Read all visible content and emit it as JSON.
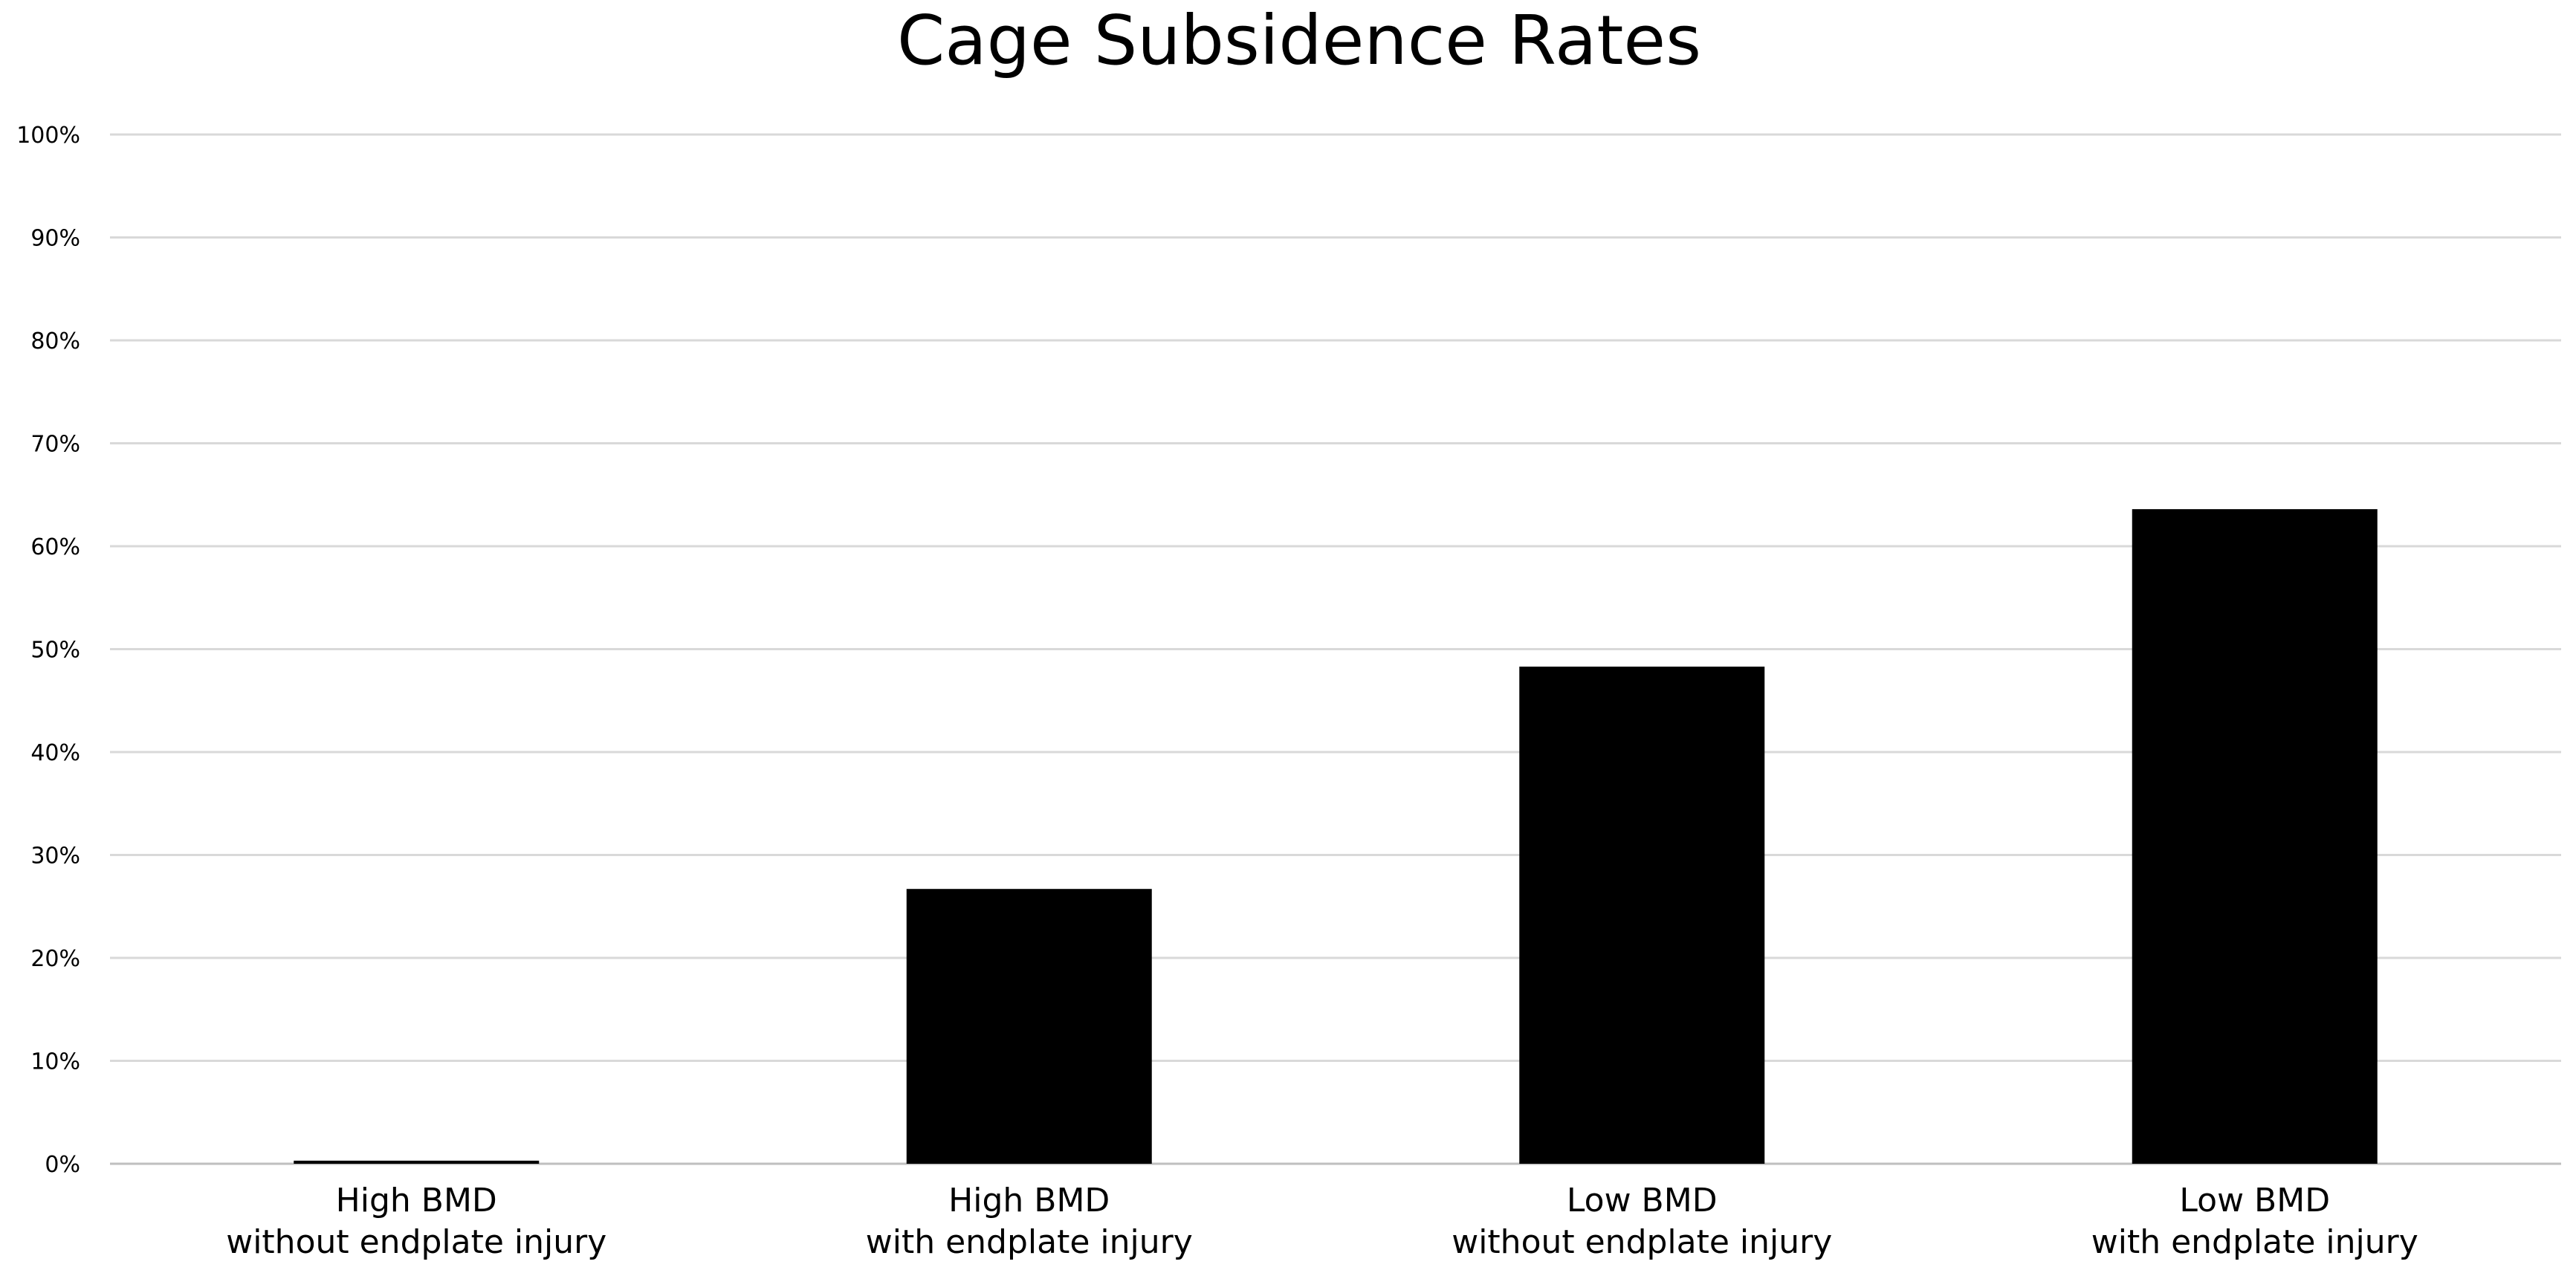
{
  "chart_data": {
    "type": "bar",
    "title": "Cage Subsidence Rates",
    "xlabel": "",
    "ylabel": "",
    "ylim": [
      0,
      100
    ],
    "y_ticks": [
      "0%",
      "10%",
      "20%",
      "30%",
      "40%",
      "50%",
      "60%",
      "70%",
      "80%",
      "90%",
      "100%"
    ],
    "y_tick_values": [
      0,
      10,
      20,
      30,
      40,
      50,
      60,
      70,
      80,
      90,
      100
    ],
    "categories": [
      [
        "High BMD",
        "without endplate injury"
      ],
      [
        "High BMD",
        "with endplate injury"
      ],
      [
        "Low BMD",
        "without endplate injury"
      ],
      [
        "Low BMD",
        "with endplate injury"
      ]
    ],
    "values": [
      0.3,
      26.7,
      48.3,
      63.6
    ],
    "grid": true,
    "legend": "none",
    "colors": {
      "bar": "#000000",
      "grid": "#d9d9d9"
    }
  }
}
